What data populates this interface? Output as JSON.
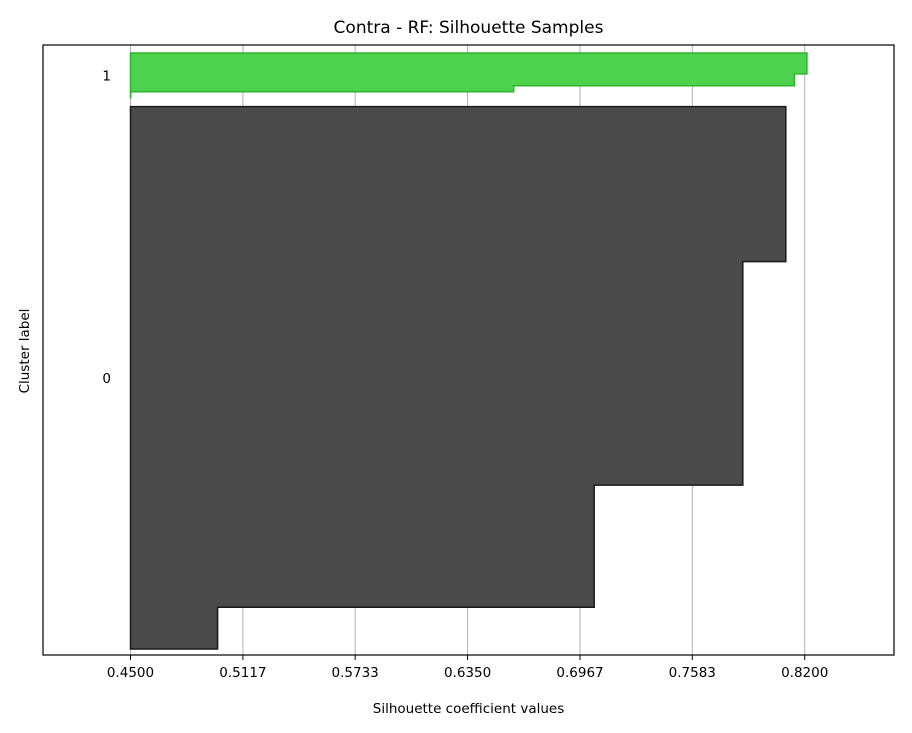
{
  "chart_data": {
    "type": "area",
    "title": "Contra - RF: Silhouette Samples",
    "xlabel": "Silhouette coefficient values",
    "ylabel": "Cluster label",
    "xticks": [
      "0.4500",
      "0.5117",
      "0.5733",
      "0.6350",
      "0.6967",
      "0.7583",
      "0.8200"
    ],
    "xlim": [
      0.402,
      0.869
    ],
    "grid": "vertical",
    "clusters": [
      {
        "label": "1",
        "color": "#4cd24c",
        "edge_color": "#2fb42f",
        "row_range": [
          0,
          15
        ],
        "segments": [
          {
            "rows": [
              0,
              7
            ],
            "value": 0.8212
          },
          {
            "rows": [
              7,
              11
            ],
            "value": 0.8143
          },
          {
            "rows": [
              11,
              13
            ],
            "value": 0.6603
          },
          {
            "rows": [
              13,
              15
            ],
            "value": 0.4502
          }
        ]
      },
      {
        "label": "0",
        "color": "#4a4a4a",
        "edge_color": "#1a1a1a",
        "row_range": [
          18,
          200
        ],
        "segments": [
          {
            "rows": [
              18,
              70
            ],
            "value": 0.8096
          },
          {
            "rows": [
              70,
              145
            ],
            "value": 0.786
          },
          {
            "rows": [
              145,
              186
            ],
            "value": 0.7045
          },
          {
            "rows": [
              186,
              200
            ],
            "value": 0.4978
          }
        ]
      }
    ]
  }
}
